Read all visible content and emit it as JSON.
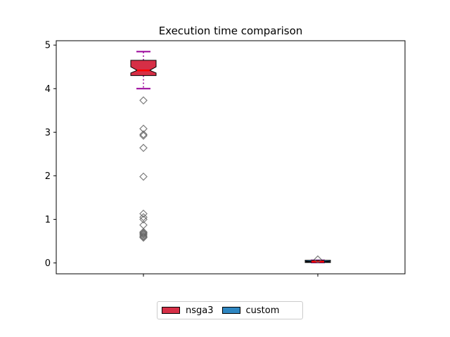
{
  "chart_data": {
    "type": "box",
    "title": "Execution time comparison",
    "xlabel": "",
    "ylabel": "",
    "ylim": [
      -0.25,
      5.1
    ],
    "yticks": [
      0,
      1,
      2,
      3,
      4,
      5
    ],
    "xticks_labels": [],
    "grid": false,
    "legend_placement": "bottom-center",
    "series": [
      {
        "name": "nsga3",
        "color": "#d62f46",
        "position": 1,
        "whisker_low": 4.0,
        "q1": 4.3,
        "median": 4.42,
        "q3": 4.65,
        "whisker_high": 4.85,
        "notch_low": 4.36,
        "notch_high": 4.5,
        "outliers": [
          3.73,
          3.08,
          2.95,
          2.92,
          2.64,
          1.98,
          1.13,
          1.05,
          1.0,
          0.87,
          0.71,
          0.69,
          0.67,
          0.65,
          0.62,
          0.6,
          0.58
        ]
      },
      {
        "name": "custom",
        "color": "#2e86c1",
        "position": 2,
        "whisker_low": 0.01,
        "q1": 0.01,
        "median": 0.03,
        "q3": 0.06,
        "whisker_high": 0.06,
        "notch_low": 0.02,
        "notch_high": 0.04,
        "outliers": [
          0.08
        ]
      }
    ],
    "styles": {
      "median_color": "#ff0000",
      "whisker_color": "#990099",
      "outlier_edge_color": "#666666"
    }
  }
}
